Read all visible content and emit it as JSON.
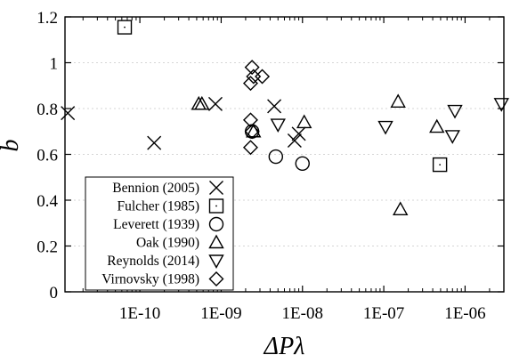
{
  "chart_data": {
    "type": "scatter",
    "xlabel": "ΔPλ",
    "ylabel": "b",
    "xscale": "log",
    "xlim": [
      1.2e-11,
      3e-06
    ],
    "ylim": [
      0,
      1.2
    ],
    "grid": "horizontal dotted",
    "legend_position": "bottom-left",
    "xticks": [
      {
        "value": 1e-10,
        "label": "1E-10"
      },
      {
        "value": 1e-09,
        "label": "1E-09"
      },
      {
        "value": 1e-08,
        "label": "1E-08"
      },
      {
        "value": 1e-07,
        "label": "1E-07"
      },
      {
        "value": 1e-06,
        "label": "1E-06"
      }
    ],
    "yticks": [
      {
        "value": 0,
        "label": "0"
      },
      {
        "value": 0.2,
        "label": "0.2"
      },
      {
        "value": 0.4,
        "label": "0.4"
      },
      {
        "value": 0.6,
        "label": "0.6"
      },
      {
        "value": 0.8,
        "label": "0.8"
      },
      {
        "value": 1.0,
        "label": "1"
      },
      {
        "value": 1.2,
        "label": "1.2"
      }
    ],
    "series": [
      {
        "name": "Bennion (2005)",
        "marker": "cross",
        "points": [
          [
            1.3e-11,
            0.78
          ],
          [
            1.5e-10,
            0.65
          ],
          [
            8.5e-10,
            0.82
          ],
          [
            4.5e-09,
            0.81
          ],
          [
            8e-09,
            0.66
          ],
          [
            9e-09,
            0.69
          ]
        ]
      },
      {
        "name": "Fulcher (1985)",
        "marker": "square",
        "points": [
          [
            6.5e-11,
            1.155
          ],
          [
            4.9e-07,
            0.555
          ]
        ]
      },
      {
        "name": "Leverett (1939)",
        "marker": "circle",
        "points": [
          [
            2.4e-09,
            0.7
          ],
          [
            4.7e-09,
            0.59
          ],
          [
            1e-08,
            0.56
          ]
        ]
      },
      {
        "name": "Oak (1990)",
        "marker": "triangle-up",
        "points": [
          [
            5.3e-10,
            0.82
          ],
          [
            5.8e-10,
            0.82
          ],
          [
            2.5e-09,
            0.7
          ],
          [
            1.05e-08,
            0.74
          ],
          [
            1.5e-07,
            0.83
          ],
          [
            1.6e-07,
            0.36
          ],
          [
            4.5e-07,
            0.72
          ]
        ]
      },
      {
        "name": "Reynolds (2014)",
        "marker": "triangle-down",
        "points": [
          [
            5e-09,
            0.73
          ],
          [
            1.05e-07,
            0.72
          ],
          [
            7e-07,
            0.68
          ],
          [
            7.5e-07,
            0.79
          ],
          [
            2.8e-06,
            0.82
          ]
        ]
      },
      {
        "name": "Virnovsky (1998)",
        "marker": "diamond",
        "points": [
          [
            2.4e-09,
            0.98
          ],
          [
            2.5e-09,
            0.94
          ],
          [
            2.3e-09,
            0.91
          ],
          [
            3.2e-09,
            0.94
          ],
          [
            2.3e-09,
            0.75
          ],
          [
            2.4e-09,
            0.7
          ],
          [
            2.3e-09,
            0.63
          ]
        ]
      }
    ]
  }
}
